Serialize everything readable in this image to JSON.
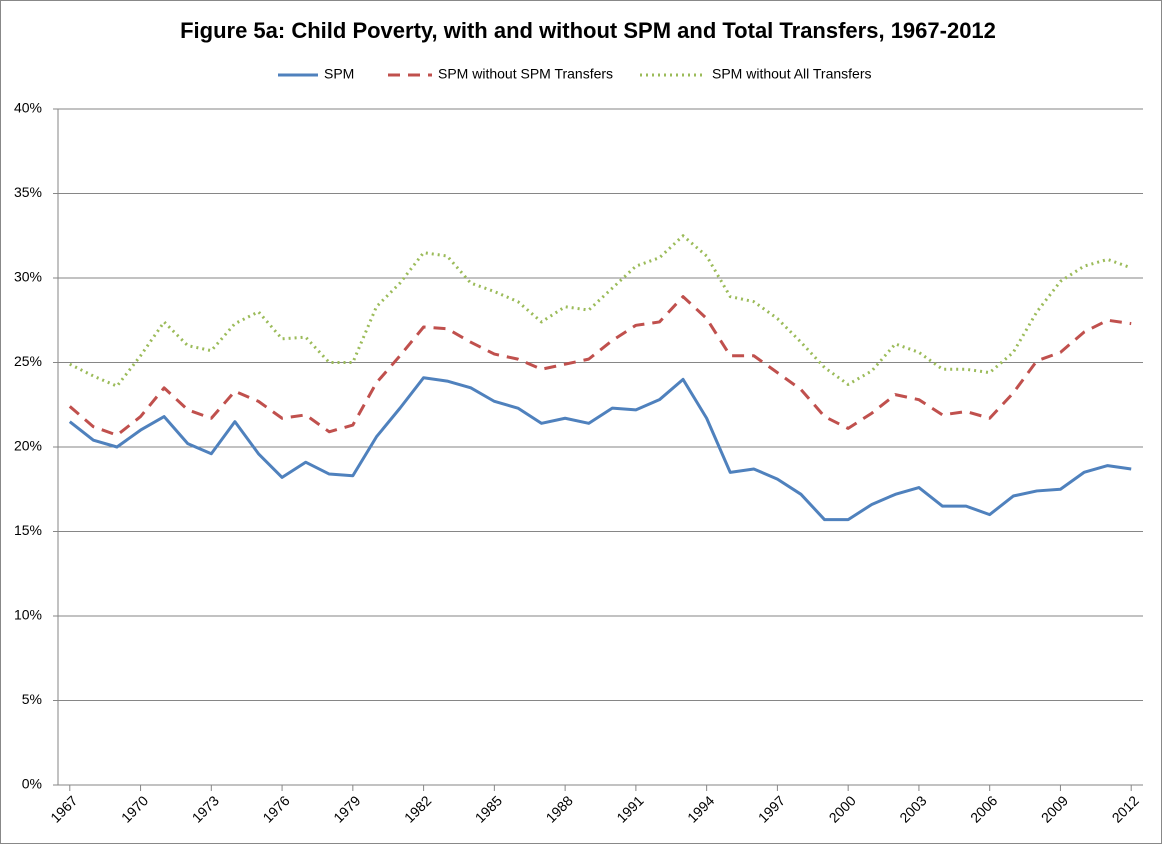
{
  "chart_data": {
    "type": "line",
    "title": "Figure 5a: Child Poverty, with and without SPM and Total Transfers, 1967-2012",
    "x": [
      1967,
      1968,
      1969,
      1970,
      1971,
      1972,
      1973,
      1974,
      1975,
      1976,
      1977,
      1978,
      1979,
      1980,
      1981,
      1982,
      1983,
      1984,
      1985,
      1986,
      1987,
      1988,
      1989,
      1990,
      1991,
      1992,
      1993,
      1994,
      1995,
      1996,
      1997,
      1998,
      1999,
      2000,
      2001,
      2002,
      2003,
      2004,
      2005,
      2006,
      2007,
      2008,
      2009,
      2010,
      2011,
      2012
    ],
    "xlim": [
      1966.5,
      2012.5
    ],
    "xticks": [
      1967,
      1970,
      1973,
      1976,
      1979,
      1982,
      1985,
      1988,
      1991,
      1994,
      1997,
      2000,
      2003,
      2006,
      2009,
      2012
    ],
    "ylim": [
      0,
      40
    ],
    "yticks": [
      {
        "value": 0,
        "label": "0%"
      },
      {
        "value": 5,
        "label": "5%"
      },
      {
        "value": 10,
        "label": "10%"
      },
      {
        "value": 15,
        "label": "15%"
      },
      {
        "value": 20,
        "label": "20%"
      },
      {
        "value": 25,
        "label": "25%"
      },
      {
        "value": 30,
        "label": "30%"
      },
      {
        "value": 35,
        "label": "35%"
      },
      {
        "value": 40,
        "label": "40%"
      }
    ],
    "grid": true,
    "legend": "top",
    "series": [
      {
        "name": "SPM",
        "color": "#4f81bd",
        "style": "solid",
        "values": [
          21.5,
          20.4,
          20.0,
          21.0,
          21.8,
          20.2,
          19.6,
          21.5,
          19.6,
          18.2,
          19.1,
          18.4,
          18.3,
          20.6,
          22.3,
          24.1,
          23.9,
          23.5,
          22.7,
          22.3,
          21.4,
          21.7,
          21.4,
          22.3,
          22.2,
          22.8,
          24.0,
          21.7,
          18.5,
          18.7,
          18.1,
          17.2,
          15.7,
          15.7,
          16.6,
          17.2,
          17.6,
          16.5,
          16.5,
          16.0,
          17.1,
          17.4,
          17.5,
          18.5,
          18.9,
          18.7
        ]
      },
      {
        "name": "SPM without SPM Transfers",
        "color": "#c0504d",
        "style": "dashed",
        "values": [
          22.4,
          21.2,
          20.7,
          21.8,
          23.5,
          22.2,
          21.7,
          23.3,
          22.7,
          21.7,
          21.9,
          20.9,
          21.3,
          23.8,
          25.4,
          27.1,
          27.0,
          26.2,
          25.5,
          25.2,
          24.6,
          24.9,
          25.2,
          26.3,
          27.2,
          27.4,
          28.9,
          27.6,
          25.4,
          25.4,
          24.4,
          23.4,
          21.8,
          21.1,
          22.0,
          23.1,
          22.8,
          21.9,
          22.1,
          21.7,
          23.2,
          25.1,
          25.6,
          26.8,
          27.5,
          27.3
        ]
      },
      {
        "name": "SPM without All Transfers",
        "color": "#9bbb59",
        "style": "dotted",
        "values": [
          24.9,
          24.2,
          23.6,
          25.4,
          27.4,
          26.0,
          25.7,
          27.3,
          28.0,
          26.4,
          26.5,
          25.0,
          25.0,
          28.3,
          29.7,
          31.5,
          31.3,
          29.7,
          29.2,
          28.6,
          27.4,
          28.3,
          28.1,
          29.4,
          30.7,
          31.2,
          32.5,
          31.3,
          28.9,
          28.6,
          27.6,
          26.2,
          24.7,
          23.7,
          24.5,
          26.1,
          25.6,
          24.6,
          24.6,
          24.4,
          25.6,
          28.0,
          29.8,
          30.7,
          31.1,
          30.6
        ]
      }
    ]
  }
}
